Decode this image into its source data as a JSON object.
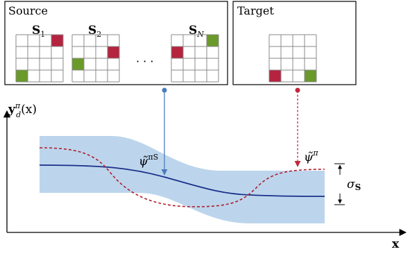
{
  "source_box": {
    "title": "Source",
    "grids": [
      {
        "label_base": "S",
        "label_sub": "1",
        "cells": [
          {
            "row": 0,
            "col": 3,
            "color": "red"
          },
          {
            "row": 3,
            "col": 0,
            "color": "green"
          }
        ]
      },
      {
        "label_base": "S",
        "label_sub": "2",
        "cells": [
          {
            "row": 1,
            "col": 3,
            "color": "red"
          },
          {
            "row": 2,
            "col": 0,
            "color": "green"
          }
        ]
      },
      {
        "label_base": "S",
        "label_sub": "N",
        "cells": [
          {
            "row": 1,
            "col": 0,
            "color": "red"
          },
          {
            "row": 0,
            "col": 3,
            "color": "green"
          }
        ]
      }
    ],
    "ellipsis": "· · ·"
  },
  "target_box": {
    "title": "Target",
    "grid": {
      "cells": [
        {
          "row": 3,
          "col": 0,
          "color": "red"
        },
        {
          "row": 3,
          "col": 3,
          "color": "green"
        }
      ]
    }
  },
  "plot": {
    "y_label_base": "y",
    "y_label_sup": "π",
    "y_label_sub": "d",
    "y_label_arg": "(x)",
    "x_label": "x",
    "source_curve_label_base": "ψ̃",
    "source_curve_label_sup": "πS",
    "target_curve_label_base": "ψ̃",
    "target_curve_label_sup": "π",
    "band_label_base": "σ",
    "band_label_sub": "S"
  },
  "colors": {
    "red_cell": "#b5233f",
    "green_cell": "#6a9a2a",
    "grid_line": "#888888",
    "band_fill": "#bcd5ec",
    "source_curve": "#1a2f8a",
    "target_curve": "#b01c2c",
    "source_arrow": "#4a7dbb",
    "target_arrow": "#c0283a"
  }
}
